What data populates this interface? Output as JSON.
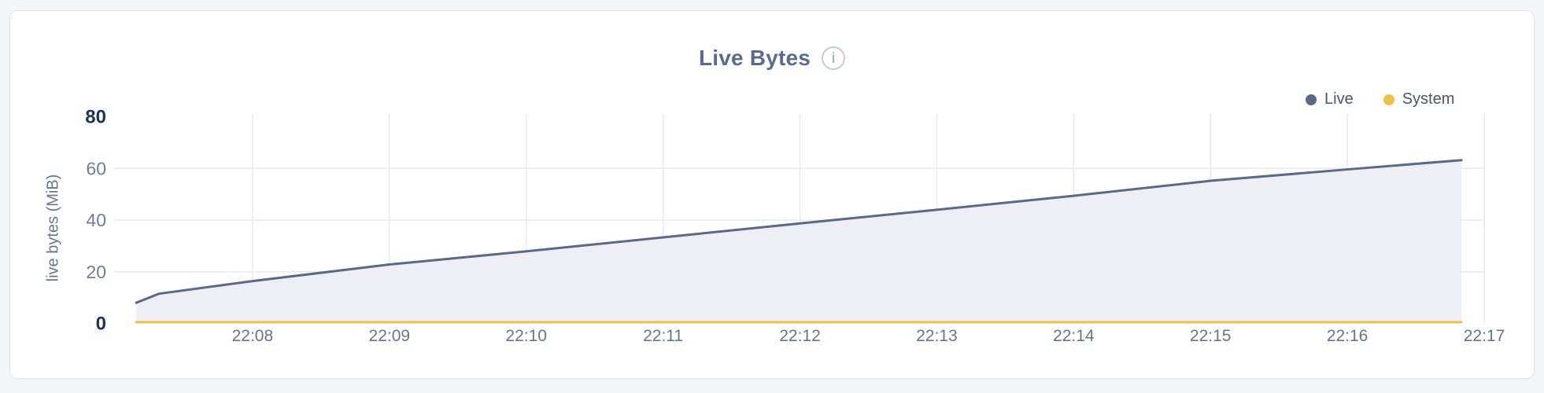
{
  "header": {
    "title": "Live Bytes",
    "info_icon": "i"
  },
  "legend": {
    "items": [
      {
        "label": "Live",
        "color": "#5b6989"
      },
      {
        "label": "System",
        "color": "#ecc14e"
      }
    ]
  },
  "colors": {
    "page_background": "#f4f5f9",
    "card_background": "#ffffff",
    "card_border": "#e2e4e8",
    "title": "#5b6b8e",
    "grid": "#e9eaee",
    "live_line": "#5b6989",
    "live_fill": "#edeff4",
    "system_line": "#ecc14e",
    "x_tick_text": "#64768c",
    "y_tick_text": "#6d7f97",
    "y_tick_emphasis_text": "#18355e"
  },
  "chart_data": {
    "type": "area",
    "title": "Live Bytes",
    "xlabel": "",
    "ylabel": "live bytes (MiB)",
    "ylim": [
      0,
      80
    ],
    "xlim": [
      "22:07",
      "22:17"
    ],
    "grid": true,
    "legend_position": "top-right",
    "x_tick_labels": [
      "22:08",
      "22:09",
      "22:10",
      "22:11",
      "22:12",
      "22:13",
      "22:14",
      "22:15",
      "22:16",
      "22:17"
    ],
    "y_ticks": [
      0,
      20,
      40,
      60,
      80
    ],
    "y_ticks_emphasized": [
      0,
      80
    ],
    "y_gridline_ticks": [
      20,
      40,
      60
    ],
    "series": [
      {
        "name": "Live",
        "color": "#5b6989",
        "fill": "#edeff4",
        "points": [
          [
            "22:07:09",
            8.0
          ],
          [
            "22:07:19",
            11.5
          ],
          [
            "22:08:00",
            16.4
          ],
          [
            "22:09:00",
            22.8
          ],
          [
            "22:10:00",
            27.9
          ],
          [
            "22:11:00",
            33.3
          ],
          [
            "22:12:00",
            38.7
          ],
          [
            "22:13:00",
            44.0
          ],
          [
            "22:14:00",
            49.4
          ],
          [
            "22:15:00",
            55.2
          ],
          [
            "22:16:00",
            59.6
          ],
          [
            "22:16:50",
            63.2
          ]
        ]
      },
      {
        "name": "System",
        "color": "#ecc14e",
        "fill": null,
        "points": [
          [
            "22:07:09",
            0.5
          ],
          [
            "22:16:50",
            0.5
          ]
        ]
      }
    ]
  }
}
